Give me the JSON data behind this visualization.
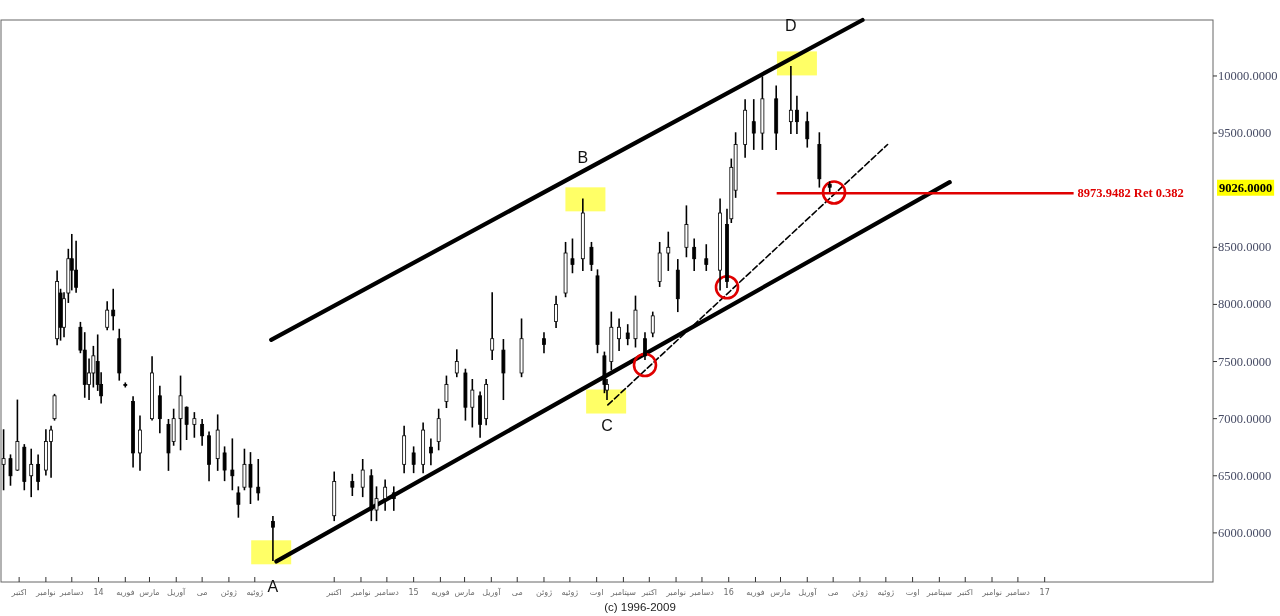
{
  "chart_data": {
    "type": "candlestick",
    "color": "#000000",
    "x": [
      "2013-09-13",
      "2013-09-21",
      "2013-09-29",
      "2013-10-07",
      "2013-10-15",
      "2013-10-23",
      "2013-11-01",
      "2013-11-07",
      "2013-11-11",
      "2013-11-14",
      "2013-11-18",
      "2013-11-22",
      "2013-11-27",
      "2013-12-01",
      "2013-12-06",
      "2013-12-11",
      "2013-12-16",
      "2013-12-21",
      "2013-12-26",
      "2013-12-31",
      "2014-01-04",
      "2014-01-11",
      "2014-01-18",
      "2014-01-25",
      "2014-02-01",
      "2014-02-10",
      "2014-02-18",
      "2014-03-04",
      "2014-03-13",
      "2014-03-23",
      "2014-03-29",
      "2014-04-06",
      "2014-04-13",
      "2014-04-22",
      "2014-05-01",
      "2014-05-09",
      "2014-05-19",
      "2014-05-27",
      "2014-06-05",
      "2014-06-12",
      "2014-06-19",
      "2014-06-26",
      "2014-07-05",
      "2014-07-22",
      "2014-10-01",
      "2014-10-22",
      "2014-11-03",
      "2014-11-13",
      "2014-11-19",
      "2014-11-29",
      "2014-12-09",
      "2014-12-21",
      "2015-01-01",
      "2015-01-12",
      "2015-01-21",
      "2015-01-30",
      "2015-02-08",
      "2015-02-20",
      "2015-03-02",
      "2015-03-10",
      "2015-03-19",
      "2015-03-26",
      "2015-04-02",
      "2015-04-15",
      "2015-05-06",
      "2015-06-01",
      "2015-06-15",
      "2015-06-26",
      "2015-07-04",
      "2015-07-16",
      "2015-07-26",
      "2015-08-02",
      "2015-08-10",
      "2015-08-13",
      "2015-08-18",
      "2015-08-27",
      "2015-09-06",
      "2015-09-15",
      "2015-09-26",
      "2015-10-05",
      "2015-10-13",
      "2015-10-23",
      "2015-11-03",
      "2015-11-13",
      "2015-11-22",
      "2015-12-06",
      "2015-12-22",
      "2015-12-30",
      "2016-01-04",
      "2016-01-09",
      "2016-01-20",
      "2016-01-30",
      "2016-02-09",
      "2016-02-25",
      "2016-03-13",
      "2016-03-20",
      "2016-04-01",
      "2016-04-15",
      "2016-04-27"
    ],
    "ohlc": [
      [
        6600,
        6900,
        6380,
        6650
      ],
      [
        6650,
        6680,
        6420,
        6500
      ],
      [
        6550,
        7160,
        6550,
        6800
      ],
      [
        6750,
        6770,
        6380,
        6450
      ],
      [
        6500,
        6730,
        6320,
        6600
      ],
      [
        6600,
        6680,
        6380,
        6450
      ],
      [
        6550,
        6900,
        6510,
        6800
      ],
      [
        6800,
        6930,
        6490,
        6900
      ],
      [
        7000,
        7210,
        6990,
        7200
      ],
      [
        7700,
        8290,
        7650,
        8200
      ],
      [
        8100,
        8130,
        7690,
        7800
      ],
      [
        7800,
        8100,
        7720,
        8050
      ],
      [
        8100,
        8480,
        8020,
        8400
      ],
      [
        8400,
        8610,
        8130,
        8300
      ],
      [
        8300,
        8550,
        8110,
        8150
      ],
      [
        7800,
        7840,
        7580,
        7600
      ],
      [
        7600,
        7750,
        7190,
        7300
      ],
      [
        7300,
        7520,
        7170,
        7400
      ],
      [
        7400,
        7630,
        7280,
        7550
      ],
      [
        7500,
        7730,
        7250,
        7300
      ],
      [
        7300,
        7400,
        7140,
        7200
      ],
      [
        7800,
        8020,
        7780,
        7950
      ],
      [
        7950,
        8130,
        7780,
        7900
      ],
      [
        7700,
        7780,
        7340,
        7400
      ],
      [
        7300,
        7310,
        7280,
        7290
      ],
      [
        7150,
        7190,
        6580,
        6700
      ],
      [
        6700,
        7020,
        6550,
        6900
      ],
      [
        7000,
        7540,
        6990,
        7400
      ],
      [
        7200,
        7280,
        6880,
        7000
      ],
      [
        6950,
        6990,
        6550,
        6700
      ],
      [
        6800,
        7080,
        6770,
        7000
      ],
      [
        7000,
        7370,
        6730,
        7200
      ],
      [
        7100,
        7100,
        6820,
        6950
      ],
      [
        6950,
        7050,
        6840,
        7000
      ],
      [
        6950,
        6990,
        6770,
        6850
      ],
      [
        6850,
        6880,
        6460,
        6600
      ],
      [
        6650,
        7030,
        6550,
        6900
      ],
      [
        6700,
        6750,
        6460,
        6550
      ],
      [
        6550,
        6820,
        6380,
        6500
      ],
      [
        6350,
        6400,
        6140,
        6250
      ],
      [
        6400,
        6730,
        6380,
        6600
      ],
      [
        6600,
        6700,
        6260,
        6400
      ],
      [
        6400,
        6640,
        6290,
        6350
      ],
      [
        6100,
        6140,
        5760,
        6050
      ],
      [
        6150,
        6530,
        6110,
        6450
      ],
      [
        6450,
        6510,
        6330,
        6400
      ],
      [
        6400,
        6640,
        6320,
        6550
      ],
      [
        6500,
        6550,
        6110,
        6200
      ],
      [
        6200,
        6400,
        6110,
        6300
      ],
      [
        6300,
        6460,
        6200,
        6400
      ],
      [
        6350,
        6400,
        6200,
        6300
      ],
      [
        6600,
        6930,
        6530,
        6850
      ],
      [
        6700,
        6750,
        6530,
        6600
      ],
      [
        6600,
        6960,
        6530,
        6900
      ],
      [
        6750,
        6820,
        6600,
        6700
      ],
      [
        6800,
        7080,
        6730,
        7000
      ],
      [
        7150,
        7370,
        7100,
        7300
      ],
      [
        7400,
        7600,
        7370,
        7500
      ],
      [
        7400,
        7430,
        6990,
        7100
      ],
      [
        7100,
        7340,
        6930,
        7250
      ],
      [
        7200,
        7230,
        6840,
        6950
      ],
      [
        7000,
        7340,
        6950,
        7300
      ],
      [
        7600,
        8100,
        7520,
        7700
      ],
      [
        7600,
        7690,
        7170,
        7400
      ],
      [
        7400,
        7870,
        7370,
        7700
      ],
      [
        7700,
        7750,
        7580,
        7650
      ],
      [
        7850,
        8070,
        7800,
        8000
      ],
      [
        8100,
        8540,
        8070,
        8450
      ],
      [
        8400,
        8570,
        8280,
        8350
      ],
      [
        8400,
        8920,
        8300,
        8800
      ],
      [
        8500,
        8540,
        8300,
        8350
      ],
      [
        8250,
        8300,
        7580,
        7650
      ],
      [
        7550,
        7580,
        7230,
        7300
      ],
      [
        7250,
        7340,
        7170,
        7300
      ],
      [
        7500,
        7930,
        7430,
        7800
      ],
      [
        7700,
        7870,
        7600,
        7800
      ],
      [
        7750,
        7820,
        7650,
        7700
      ],
      [
        7700,
        8070,
        7630,
        7950
      ],
      [
        7700,
        7750,
        7520,
        7550
      ],
      [
        7750,
        7930,
        7720,
        7900
      ],
      [
        8200,
        8540,
        8160,
        8450
      ],
      [
        8450,
        8630,
        8300,
        8500
      ],
      [
        8300,
        8390,
        7940,
        8050
      ],
      [
        8500,
        8860,
        8420,
        8700
      ],
      [
        8500,
        8570,
        8300,
        8400
      ],
      [
        8400,
        8520,
        8300,
        8350
      ],
      [
        8300,
        8920,
        8130,
        8800
      ],
      [
        8700,
        8830,
        8150,
        8200
      ],
      [
        8750,
        9270,
        8720,
        9200
      ],
      [
        9000,
        9500,
        8940,
        9400
      ],
      [
        9400,
        9790,
        9290,
        9700
      ],
      [
        9600,
        9790,
        9360,
        9500
      ],
      [
        9500,
        9990,
        9360,
        9800
      ],
      [
        9800,
        9910,
        9360,
        9500
      ],
      [
        9600,
        10080,
        9500,
        9700
      ],
      [
        9700,
        9820,
        9500,
        9600
      ],
      [
        9600,
        9680,
        9380,
        9450
      ],
      [
        9400,
        9500,
        9030,
        9100
      ],
      [
        9050,
        9070,
        8980,
        9026
      ]
    ],
    "series": [
      {
        "type": "line",
        "x": [
          "2014-07-20",
          "2016-06-04"
        ],
        "values": [
          7690,
          10490
        ],
        "color": "#000000",
        "line_style": "solid"
      },
      {
        "type": "line",
        "x": [
          "2014-07-26",
          "2016-09-13"
        ],
        "values": [
          5750,
          9070
        ],
        "color": "#000000",
        "line_style": "solid"
      },
      {
        "type": "line",
        "x": [
          "2015-08-14",
          "2016-07-03"
        ],
        "values": [
          7120,
          9400
        ],
        "color": "#000000",
        "line_style": "dashed"
      },
      {
        "type": "scatter",
        "marker": "square",
        "color": "#ffff66",
        "x": [
          "2014-07-20",
          "2015-07-19",
          "2015-08-12",
          "2016-03-20"
        ],
        "values": [
          5830,
          8920,
          7150,
          10110
        ]
      },
      {
        "type": "scatter",
        "marker": "circle",
        "color": "#e00000",
        "x": [
          "2015-09-26",
          "2015-12-30",
          "2016-05-02"
        ],
        "values": [
          7470,
          8150,
          8980
        ]
      }
    ],
    "xlim": [
      "2013-09-10",
      "2017-07-15"
    ],
    "ylim": [
      5570,
      10490
    ],
    "xticks": [
      {
        "value": "2013-10-01",
        "label": "اکتبر"
      },
      {
        "value": "2013-11-01",
        "label": "نوامبر"
      },
      {
        "value": "2013-12-01",
        "label": "دسامبر"
      },
      {
        "value": "2014-01-01",
        "label": "14"
      },
      {
        "value": "2014-02-01",
        "label": "فوریه"
      },
      {
        "value": "2014-03-01",
        "label": "مارس"
      },
      {
        "value": "2014-04-01",
        "label": "آوریل"
      },
      {
        "value": "2014-05-01",
        "label": "می"
      },
      {
        "value": "2014-06-01",
        "label": "ژوئن"
      },
      {
        "value": "2014-07-01",
        "label": "ژوئیه"
      },
      {
        "value": "2014-10-01",
        "label": "اکتبر"
      },
      {
        "value": "2014-11-01",
        "label": "نوامبر"
      },
      {
        "value": "2014-12-01",
        "label": "دسامبر"
      },
      {
        "value": "2015-01-01",
        "label": "15"
      },
      {
        "value": "2015-02-01",
        "label": "فوریه"
      },
      {
        "value": "2015-03-01",
        "label": "مارس"
      },
      {
        "value": "2015-04-01",
        "label": "آوریل"
      },
      {
        "value": "2015-05-01",
        "label": "می"
      },
      {
        "value": "2015-06-01",
        "label": "ژوئن"
      },
      {
        "value": "2015-07-01",
        "label": "ژوئیه"
      },
      {
        "value": "2015-08-01",
        "label": "اوت"
      },
      {
        "value": "2015-09-01",
        "label": "سپتامبر"
      },
      {
        "value": "2015-10-01",
        "label": "اکتبر"
      },
      {
        "value": "2015-11-01",
        "label": "نوامبر"
      },
      {
        "value": "2015-12-01",
        "label": "دسامبر"
      },
      {
        "value": "2016-01-01",
        "label": "16"
      },
      {
        "value": "2016-02-01",
        "label": "فوریه"
      },
      {
        "value": "2016-03-01",
        "label": "مارس"
      },
      {
        "value": "2016-04-01",
        "label": "آوریل"
      },
      {
        "value": "2016-05-01",
        "label": "می"
      },
      {
        "value": "2016-06-01",
        "label": "ژوئن"
      },
      {
        "value": "2016-07-01",
        "label": "ژوئیه"
      },
      {
        "value": "2016-08-01",
        "label": "اوت"
      },
      {
        "value": "2016-09-01",
        "label": "سپتامبر"
      },
      {
        "value": "2016-10-01",
        "label": "اکتبر"
      },
      {
        "value": "2016-11-01",
        "label": "نوامبر"
      },
      {
        "value": "2016-12-01",
        "label": "دسامبر"
      },
      {
        "value": "2017-01-01",
        "label": "17"
      }
    ],
    "yticks": [
      {
        "value": 6000,
        "label": "6000.0000"
      },
      {
        "value": 6500,
        "label": "6500.0000"
      },
      {
        "value": 7000,
        "label": "7000.0000"
      },
      {
        "value": 7500,
        "label": "7500.0000"
      },
      {
        "value": 8000,
        "label": "8000.0000"
      },
      {
        "value": 8500,
        "label": "8500.0000"
      },
      {
        "value": 9500,
        "label": "9500.0000"
      },
      {
        "value": 10000,
        "label": "10000.0000"
      }
    ],
    "ref_lines": [
      {
        "axis": "y",
        "value": 8973.9482,
        "label": "8973.9482 Ret 0.382",
        "color": "#e00000"
      }
    ],
    "annotations": [
      {
        "text": "A",
        "x": "2014-07-22",
        "y": 5760
      },
      {
        "text": "B",
        "x": "2015-07-16",
        "y": 8920
      },
      {
        "text": "C",
        "x": "2015-08-13",
        "y": 7170
      },
      {
        "text": "D",
        "x": "2016-03-13",
        "y": 10080
      },
      "9026.0000",
      "(c) 1996-2009"
    ]
  }
}
